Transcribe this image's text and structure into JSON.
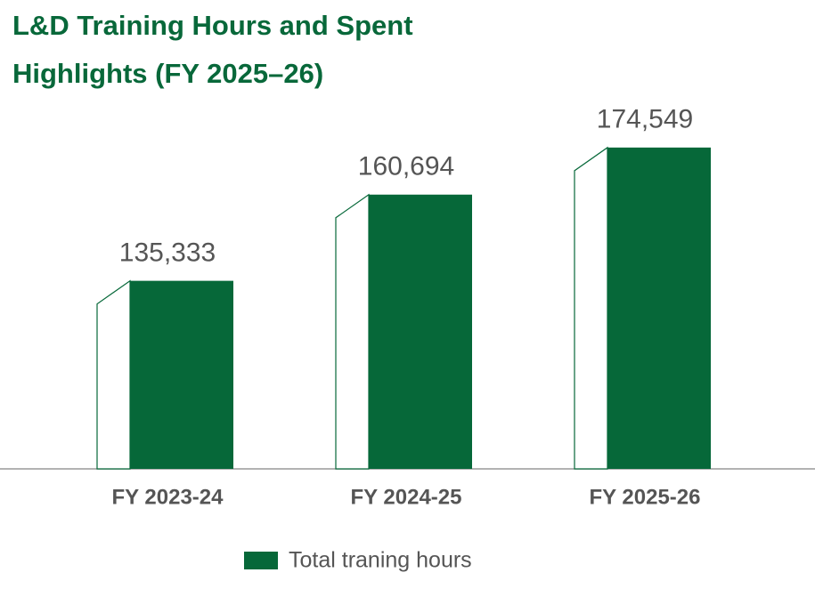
{
  "chart_data": {
    "type": "bar",
    "title_lines": [
      "L&D Training Hours and Spent",
      "Highlights (FY 2025–26)"
    ],
    "categories": [
      "FY 2023-24",
      "FY 2024-25",
      "FY 2025-26"
    ],
    "series": [
      {
        "name": "Total traning hours",
        "color": "#066839",
        "values": [
          135333,
          160694,
          174549
        ],
        "value_labels": [
          "135,333",
          "160,694",
          "174,549"
        ]
      }
    ],
    "ylim": [
      80000,
      180000
    ],
    "legend": "bottom"
  }
}
